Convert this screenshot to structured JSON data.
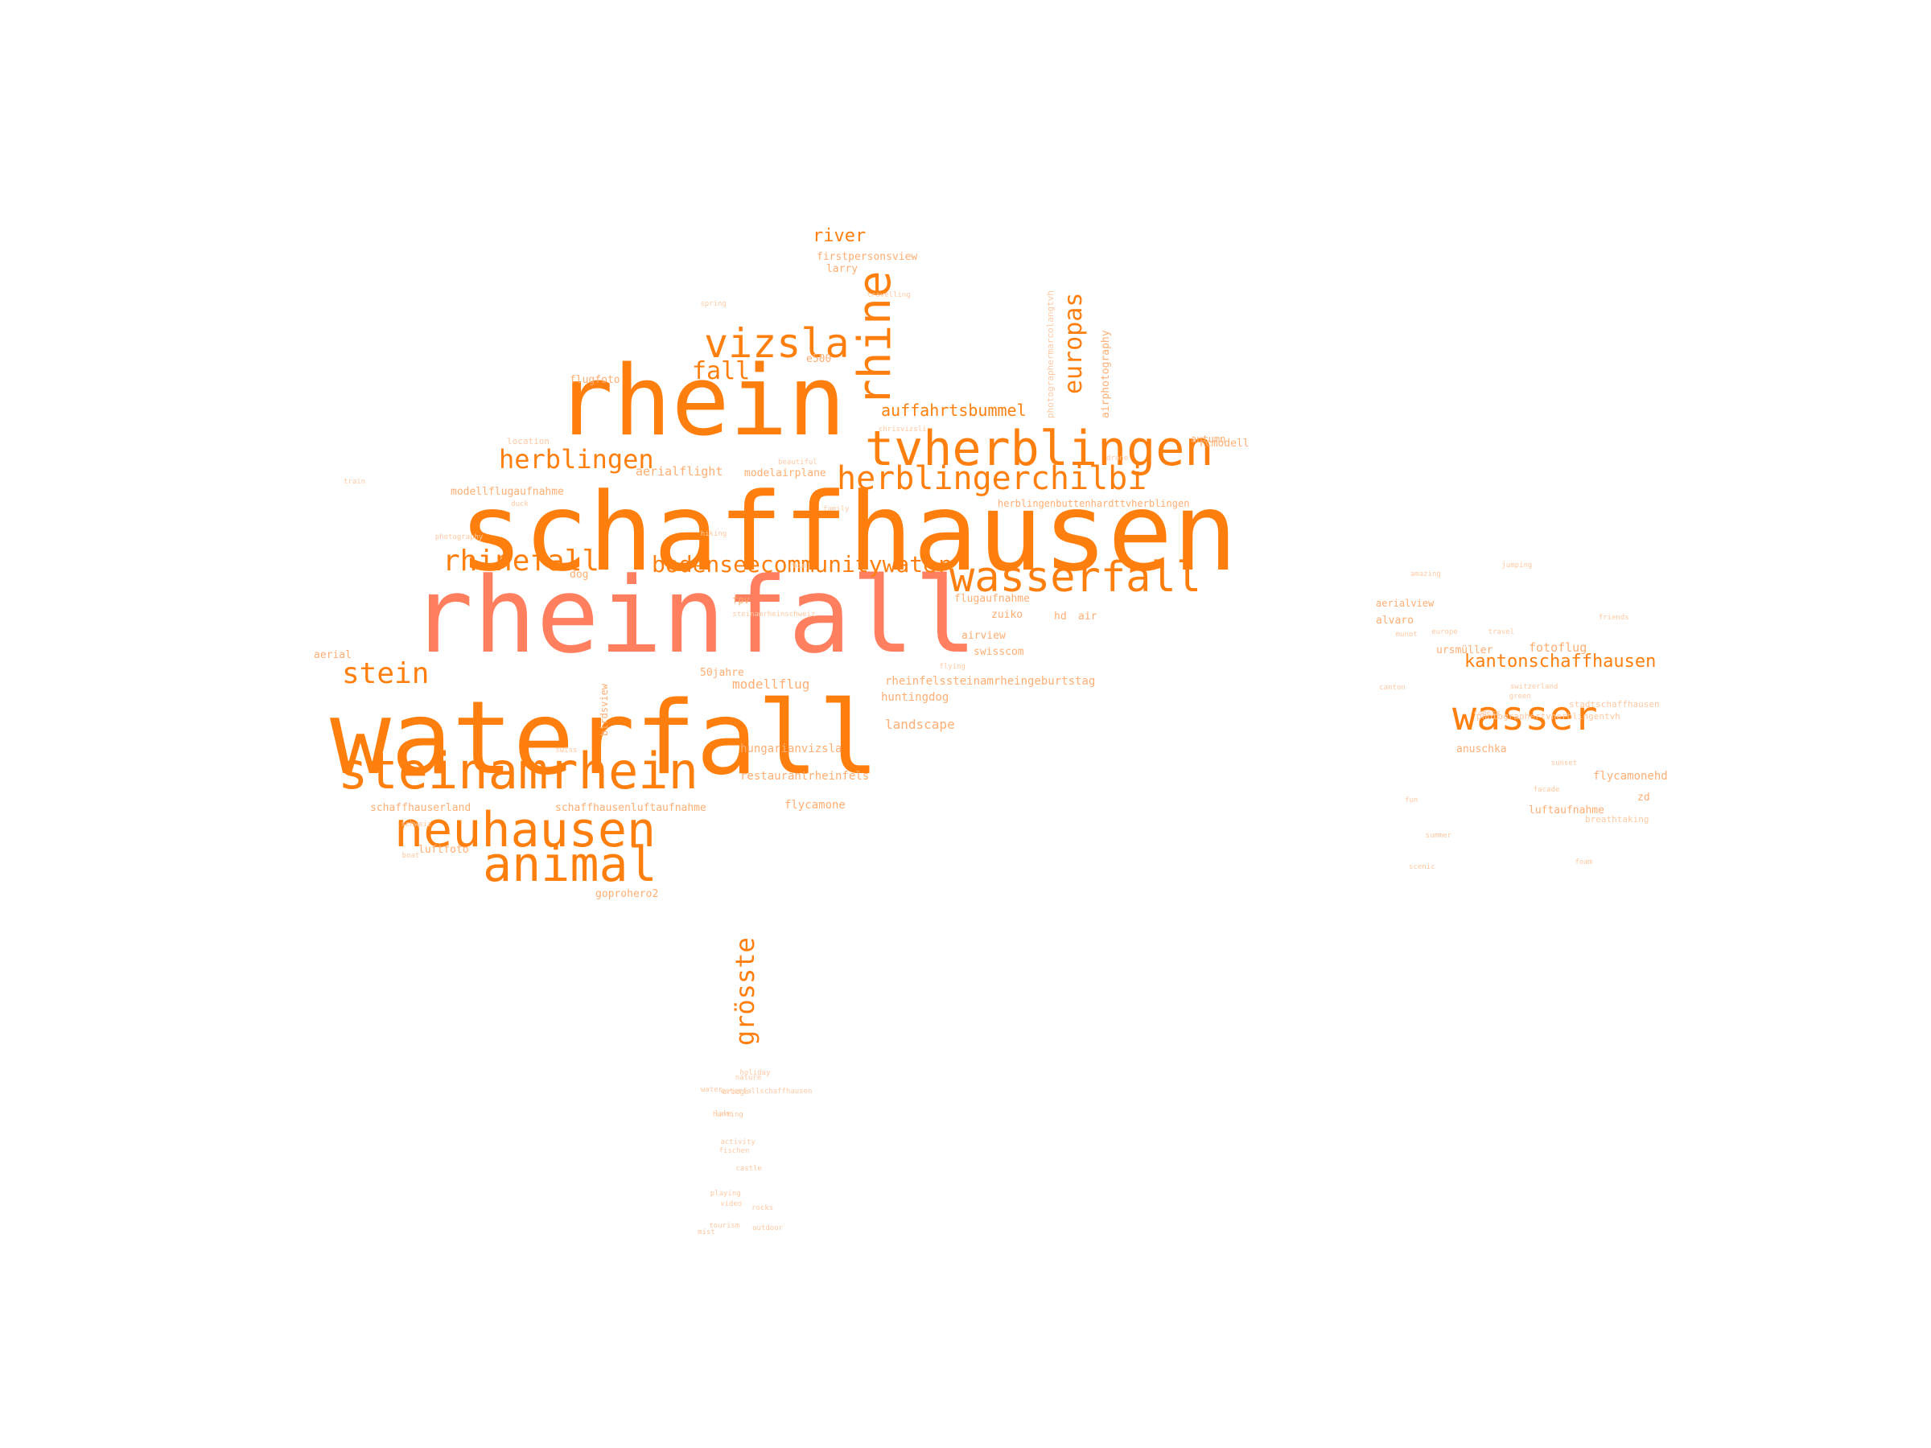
{
  "colors": {
    "background": "#ffffff",
    "primary": "#ff7f0e",
    "light": "#ffae73",
    "pale": "#ffc9a3",
    "salmon": "#ff7f5f"
  },
  "words": [
    {
      "text": "schaffhausen",
      "weight": 1.0,
      "tone": "primary",
      "vertical": false
    },
    {
      "text": "rheinfall",
      "weight": 0.98,
      "tone": "salmon",
      "vertical": false
    },
    {
      "text": "waterfall",
      "weight": 0.97,
      "tone": "primary",
      "vertical": false
    },
    {
      "text": "rhein",
      "weight": 0.9,
      "tone": "primary",
      "vertical": false
    },
    {
      "text": "steinamrhein",
      "weight": 0.55,
      "tone": "primary",
      "vertical": false
    },
    {
      "text": "tvherblingen",
      "weight": 0.52,
      "tone": "primary",
      "vertical": false
    },
    {
      "text": "neuhausen",
      "weight": 0.5,
      "tone": "primary",
      "vertical": false
    },
    {
      "text": "animal",
      "weight": 0.5,
      "tone": "primary",
      "vertical": false
    },
    {
      "text": "wasserfall",
      "weight": 0.45,
      "tone": "primary",
      "vertical": false
    },
    {
      "text": "wasser",
      "weight": 0.43,
      "tone": "primary",
      "vertical": false
    },
    {
      "text": "rhine",
      "weight": 0.42,
      "tone": "primary",
      "vertical": true
    },
    {
      "text": "vizsla",
      "weight": 0.4,
      "tone": "primary",
      "vertical": false
    },
    {
      "text": "herblingerchilbi",
      "weight": 0.32,
      "tone": "primary",
      "vertical": false
    },
    {
      "text": "rhinefall",
      "weight": 0.3,
      "tone": "primary",
      "vertical": false
    },
    {
      "text": "stein",
      "weight": 0.3,
      "tone": "primary",
      "vertical": false
    },
    {
      "text": "herblingen",
      "weight": 0.3,
      "tone": "primary",
      "vertical": false
    },
    {
      "text": "bodenseecommunitywater",
      "weight": 0.27,
      "tone": "primary",
      "vertical": false
    },
    {
      "text": "grösste",
      "weight": 0.27,
      "tone": "primary",
      "vertical": true
    },
    {
      "text": "europas",
      "weight": 0.24,
      "tone": "primary",
      "vertical": true
    },
    {
      "text": "fall",
      "weight": 0.23,
      "tone": "primary",
      "vertical": false
    },
    {
      "text": "kantonschaffhausen",
      "weight": 0.22,
      "tone": "primary",
      "vertical": false
    },
    {
      "text": "auffahrtsbummel",
      "weight": 0.2,
      "tone": "primary",
      "vertical": false
    },
    {
      "text": "river",
      "weight": 0.2,
      "tone": "primary",
      "vertical": false
    },
    {
      "text": "landscape",
      "weight": 0.14,
      "tone": "light",
      "vertical": false
    },
    {
      "text": "aerialflight",
      "weight": 0.14,
      "tone": "light",
      "vertical": false
    },
    {
      "text": "modellflug",
      "weight": 0.14,
      "tone": "light",
      "vertical": false
    },
    {
      "text": "fotoflug",
      "weight": 0.14,
      "tone": "light",
      "vertical": false
    },
    {
      "text": "flycamone",
      "weight": 0.13,
      "tone": "light",
      "vertical": false
    },
    {
      "text": "flycamonehd",
      "weight": 0.13,
      "tone": "light",
      "vertical": false
    },
    {
      "text": "huntingdog",
      "weight": 0.13,
      "tone": "light",
      "vertical": false
    },
    {
      "text": "rheinfelssteinamrheingeburtstag",
      "weight": 0.12,
      "tone": "light",
      "vertical": false
    },
    {
      "text": "restaurantrheinfels",
      "weight": 0.12,
      "tone": "light",
      "vertical": false
    },
    {
      "text": "hungarianvizsla",
      "weight": 0.12,
      "tone": "light",
      "vertical": false
    },
    {
      "text": "schaffhauserland",
      "weight": 0.11,
      "tone": "light",
      "vertical": false
    },
    {
      "text": "schaffhausenluftaufnahme",
      "weight": 0.11,
      "tone": "light",
      "vertical": false
    },
    {
      "text": "luftfoto",
      "weight": 0.11,
      "tone": "light",
      "vertical": false
    },
    {
      "text": "goprohero2",
      "weight": 0.11,
      "tone": "light",
      "vertical": false
    },
    {
      "text": "swisscom",
      "weight": 0.11,
      "tone": "light",
      "vertical": false
    },
    {
      "text": "zuiko",
      "weight": 0.11,
      "tone": "light",
      "vertical": false
    },
    {
      "text": "flugaufnahme",
      "weight": 0.11,
      "tone": "light",
      "vertical": false
    },
    {
      "text": "airview",
      "weight": 0.11,
      "tone": "light",
      "vertical": false
    },
    {
      "text": "air",
      "weight": 0.11,
      "tone": "light",
      "vertical": false
    },
    {
      "text": "hd",
      "weight": 0.11,
      "tone": "light",
      "vertical": false
    },
    {
      "text": "rcmodell",
      "weight": 0.11,
      "tone": "light",
      "vertical": false
    },
    {
      "text": "autumn",
      "weight": 0.1,
      "tone": "light",
      "vertical": false
    },
    {
      "text": "aerial",
      "weight": 0.11,
      "tone": "light",
      "vertical": false
    },
    {
      "text": "50jahre",
      "weight": 0.11,
      "tone": "light",
      "vertical": false
    },
    {
      "text": "dog",
      "weight": 0.11,
      "tone": "light",
      "vertical": false
    },
    {
      "text": "modellflugaufnahme",
      "weight": 0.11,
      "tone": "light",
      "vertical": false
    },
    {
      "text": "modelairplane",
      "weight": 0.11,
      "tone": "light",
      "vertical": false
    },
    {
      "text": "herblingenbuttenhardttvherblingen",
      "weight": 0.11,
      "tone": "light",
      "vertical": false
    },
    {
      "text": "firstpersonsview",
      "weight": 0.11,
      "tone": "light",
      "vertical": false
    },
    {
      "text": "larry",
      "weight": 0.11,
      "tone": "light",
      "vertical": false
    },
    {
      "text": "flugfoto",
      "weight": 0.11,
      "tone": "light",
      "vertical": false
    },
    {
      "text": "fpv",
      "weight": 0.11,
      "tone": "light",
      "vertical": false
    },
    {
      "text": "e500",
      "weight": 0.11,
      "tone": "light",
      "vertical": false
    },
    {
      "text": "location",
      "weight": 0.09,
      "tone": "pale",
      "vertical": false
    },
    {
      "text": "airphotography",
      "weight": 0.11,
      "tone": "light",
      "vertical": true
    },
    {
      "text": "photographermarcolangtvh",
      "weight": 0.09,
      "tone": "pale",
      "vertical": true
    },
    {
      "text": "alvaro",
      "weight": 0.11,
      "tone": "light",
      "vertical": false
    },
    {
      "text": "aerialview",
      "weight": 0.11,
      "tone": "light",
      "vertical": false
    },
    {
      "text": "ursmüller",
      "weight": 0.11,
      "tone": "light",
      "vertical": false
    },
    {
      "text": "luftaufnahme",
      "weight": 0.11,
      "tone": "light",
      "vertical": false
    },
    {
      "text": "anuschka",
      "weight": 0.11,
      "tone": "light",
      "vertical": false
    },
    {
      "text": "zd",
      "weight": 0.11,
      "tone": "light",
      "vertical": false
    },
    {
      "text": "breathtaking",
      "weight": 0.09,
      "tone": "pale",
      "vertical": false
    },
    {
      "text": "stadtschaffhausen",
      "weight": 0.09,
      "tone": "pale",
      "vertical": false
    },
    {
      "text": "photographertvherblingentvh",
      "weight": 0.09,
      "tone": "pale",
      "vertical": false
    },
    {
      "text": "birdsview",
      "weight": 0.1,
      "tone": "light",
      "vertical": true
    },
    {
      "text": "steinamrheinschweiz",
      "weight": 0.08,
      "tone": "pale",
      "vertical": false
    },
    {
      "text": "munot",
      "weight": 0.08,
      "tone": "pale",
      "vertical": false
    },
    {
      "text": "activity",
      "weight": 0.08,
      "tone": "pale",
      "vertical": false
    },
    {
      "text": "schweiz",
      "weight": 0.08,
      "tone": "pale",
      "vertical": false
    },
    {
      "text": "switzerland",
      "weight": 0.08,
      "tone": "pale",
      "vertical": false
    },
    {
      "text": "playing",
      "weight": 0.08,
      "tone": "pale",
      "vertical": false
    },
    {
      "text": "travelling",
      "weight": 0.08,
      "tone": "pale",
      "vertical": false
    },
    {
      "text": "travel",
      "weight": 0.08,
      "tone": "pale",
      "vertical": false
    },
    {
      "text": "nature",
      "weight": 0.08,
      "tone": "pale",
      "vertical": false
    },
    {
      "text": "rhin",
      "weight": 0.08,
      "tone": "pale",
      "vertical": false
    },
    {
      "text": "amazing",
      "weight": 0.08,
      "tone": "pale",
      "vertical": false
    },
    {
      "text": "outdoor",
      "weight": 0.08,
      "tone": "pale",
      "vertical": false
    },
    {
      "text": "photography",
      "weight": 0.08,
      "tone": "pale",
      "vertical": false
    },
    {
      "text": "friends",
      "weight": 0.08,
      "tone": "pale",
      "vertical": false
    },
    {
      "text": "fischen",
      "weight": 0.08,
      "tone": "pale",
      "vertical": false
    },
    {
      "text": "chrisvizsli",
      "weight": 0.08,
      "tone": "pale",
      "vertical": false
    },
    {
      "text": "scenic",
      "weight": 0.08,
      "tone": "pale",
      "vertical": false
    },
    {
      "text": "waterfallschaffhausen",
      "weight": 0.08,
      "tone": "pale",
      "vertical": false
    },
    {
      "text": "beautiful",
      "weight": 0.08,
      "tone": "pale",
      "vertical": false
    },
    {
      "text": "fun",
      "weight": 0.08,
      "tone": "pale",
      "vertical": false
    },
    {
      "text": "lake",
      "weight": 0.08,
      "tone": "pale",
      "vertical": false
    },
    {
      "text": "boat",
      "weight": 0.08,
      "tone": "pale",
      "vertical": false
    },
    {
      "text": "summer",
      "weight": 0.08,
      "tone": "pale",
      "vertical": false
    },
    {
      "text": "bridge",
      "weight": 0.08,
      "tone": "pale",
      "vertical": false
    },
    {
      "text": "family",
      "weight": 0.08,
      "tone": "pale",
      "vertical": false
    },
    {
      "text": "sunset",
      "weight": 0.08,
      "tone": "pale",
      "vertical": false
    },
    {
      "text": "water",
      "weight": 0.08,
      "tone": "pale",
      "vertical": false
    },
    {
      "text": "spring",
      "weight": 0.08,
      "tone": "pale",
      "vertical": false
    },
    {
      "text": "canton",
      "weight": 0.08,
      "tone": "pale",
      "vertical": false
    },
    {
      "text": "castle",
      "weight": 0.08,
      "tone": "pale",
      "vertical": false
    },
    {
      "text": "drone",
      "weight": 0.08,
      "tone": "pale",
      "vertical": false
    },
    {
      "text": "camera",
      "weight": 0.08,
      "tone": "pale",
      "vertical": false
    },
    {
      "text": "video",
      "weight": 0.08,
      "tone": "pale",
      "vertical": false
    },
    {
      "text": "hiking",
      "weight": 0.08,
      "tone": "pale",
      "vertical": false
    },
    {
      "text": "europe",
      "weight": 0.08,
      "tone": "pale",
      "vertical": false
    },
    {
      "text": "holiday",
      "weight": 0.08,
      "tone": "pale",
      "vertical": false
    },
    {
      "text": "swiss",
      "weight": 0.08,
      "tone": "pale",
      "vertical": false
    },
    {
      "text": "foam",
      "weight": 0.08,
      "tone": "pale",
      "vertical": false
    },
    {
      "text": "rocks",
      "weight": 0.08,
      "tone": "pale",
      "vertical": false
    },
    {
      "text": "flying",
      "weight": 0.08,
      "tone": "pale",
      "vertical": false
    },
    {
      "text": "jumping",
      "weight": 0.08,
      "tone": "pale",
      "vertical": false
    },
    {
      "text": "hunting",
      "weight": 0.08,
      "tone": "pale",
      "vertical": false
    },
    {
      "text": "duck",
      "weight": 0.08,
      "tone": "pale",
      "vertical": false
    },
    {
      "text": "facade",
      "weight": 0.08,
      "tone": "pale",
      "vertical": false
    },
    {
      "text": "tourism",
      "weight": 0.08,
      "tone": "pale",
      "vertical": false
    },
    {
      "text": "train",
      "weight": 0.08,
      "tone": "pale",
      "vertical": false
    },
    {
      "text": "green",
      "weight": 0.08,
      "tone": "pale",
      "vertical": false
    },
    {
      "text": "mist",
      "weight": 0.08,
      "tone": "pale",
      "vertical": false
    }
  ]
}
